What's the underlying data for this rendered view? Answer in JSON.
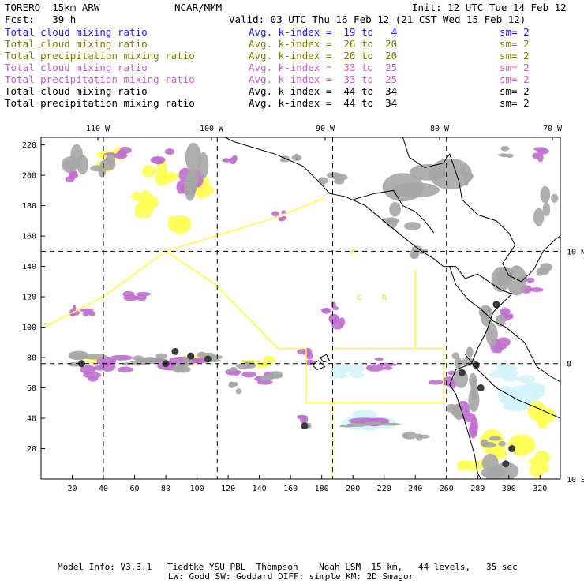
{
  "header": {
    "model": "TORERO  15km ARW",
    "org": "NCAR/MMM",
    "init": "Init: 12 UTC Tue 14 Feb 12",
    "fcst": "Fcst:   39 h",
    "valid": "Valid: 03 UTC Thu 16 Feb 12 (21 CST Wed 15 Feb 12)"
  },
  "legend": [
    {
      "field": "Total cloud mixing ratio",
      "kindex": "Avg. k-index =  19 to   4",
      "sm": "sm= 2",
      "color": "#1a1aff"
    },
    {
      "field": "Total cloud mixing ratio",
      "kindex": "Avg. k-index =  26 to  20",
      "sm": "sm= 2",
      "color": "#808000"
    },
    {
      "field": "Total precipitation mixing ratio",
      "kindex": "Avg. k-index =  26 to  20",
      "sm": "sm= 2",
      "color": "#808000"
    },
    {
      "field": "Total cloud mixing ratio",
      "kindex": "Avg. k-index =  33 to  25",
      "sm": "sm= 2",
      "color": "#c060c0"
    },
    {
      "field": "Total precipitation mixing ratio",
      "kindex": "Avg. k-index =  33 to  25",
      "sm": "sm= 2",
      "color": "#c060c0"
    },
    {
      "field": "Total cloud mixing ratio",
      "kindex": "Avg. k-index =  44 to  34",
      "sm": "sm= 2",
      "color": "#000000"
    },
    {
      "field": "Total precipitation mixing ratio",
      "kindex": "Avg. k-index =  44 to  34",
      "sm": "sm= 2",
      "color": "#000000"
    }
  ],
  "chart_data": {
    "type": "heatmap",
    "x_ticks": [
      20,
      40,
      60,
      80,
      100,
      120,
      140,
      160,
      180,
      200,
      220,
      240,
      260,
      280,
      300,
      320
    ],
    "y_ticks": [
      20,
      40,
      60,
      80,
      100,
      120,
      140,
      160,
      180,
      200,
      220
    ],
    "xlim": [
      0,
      333
    ],
    "ylim": [
      0,
      225
    ],
    "lon_labels": [
      {
        "label": "110 W",
        "x": 50
      },
      {
        "label": "100 W",
        "x": 150
      },
      {
        "label": "90 W",
        "x": 250
      },
      {
        "label": "80 W",
        "x": 350
      },
      {
        "label": "70 W",
        "x": 450
      }
    ],
    "lat_labels": [
      {
        "label": "10 N",
        "y": 150
      },
      {
        "label": "0",
        "y": 76
      },
      {
        "label": "10 S",
        "y": 0
      }
    ],
    "lon_grid_x": [
      40,
      113,
      187,
      260
    ],
    "lat_grid_y": [
      150,
      76
    ],
    "grid": true,
    "colors": {
      "gray": "#a6a6a6",
      "dark": "#3a3a3a",
      "purple": "#bf6fcf",
      "yellow": "#ffff55",
      "cyan": "#d4f4fb",
      "coast": "#000000",
      "box": "#ffff33"
    },
    "boxes": [
      {
        "name": "outer",
        "points": [
          [
            2,
            100
          ],
          [
            40,
            120
          ],
          [
            80,
            150
          ],
          [
            112,
            128
          ],
          [
            152,
            86
          ],
          [
            170,
            86
          ],
          [
            170,
            50
          ],
          [
            186,
            50
          ],
          [
            186,
            0
          ]
        ]
      },
      {
        "name": "north-leg",
        "points": [
          [
            80,
            150
          ],
          [
            150,
            172
          ],
          [
            182,
            185
          ]
        ]
      },
      {
        "name": "east-box",
        "points": [
          [
            186,
            86
          ],
          [
            240,
            86
          ],
          [
            240,
            138
          ]
        ]
      },
      {
        "name": "coast-box",
        "points": [
          [
            186,
            50
          ],
          [
            258,
            50
          ],
          [
            258,
            86
          ],
          [
            240,
            86
          ]
        ]
      }
    ],
    "annotations": [
      {
        "text": "C",
        "x": 204,
        "y": 118
      },
      {
        "text": "R",
        "x": 220,
        "y": 118
      },
      {
        "text": "Λ",
        "x": 200,
        "y": 148
      }
    ]
  },
  "footer": {
    "line1": "Model Info: V3.3.1   Tiedtke YSU PBL  Thompson    Noah LSM  15 km,   44 levels,   35 sec",
    "line2": "LW: Godd SW: Goddard DIFF: simple KM: 2D Smagor"
  }
}
